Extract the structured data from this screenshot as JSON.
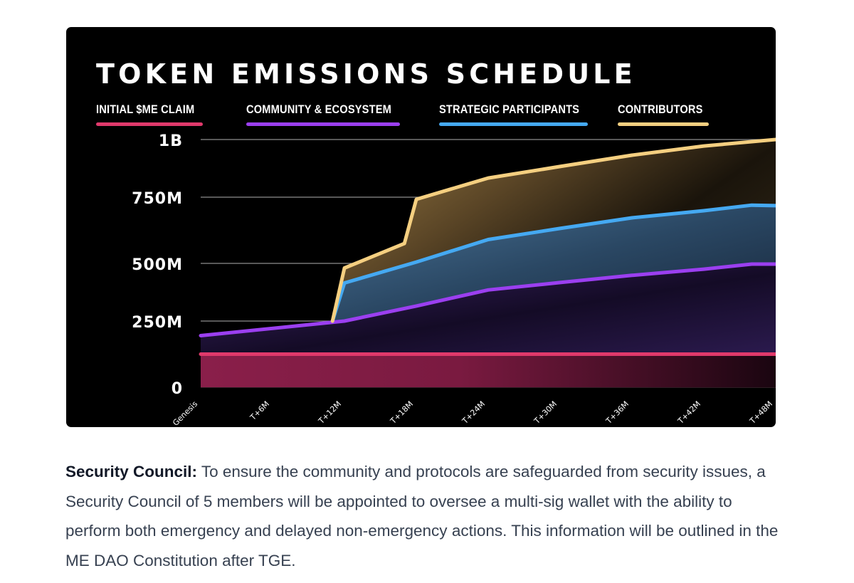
{
  "chart_data": {
    "type": "area",
    "title": "TOKEN EMISSIONS SCHEDULE",
    "xlabel": "",
    "ylabel": "",
    "x_unit": "months",
    "x_ticks": [
      {
        "month": 0,
        "label": "Genesis"
      },
      {
        "month": 6,
        "label": "T+6M"
      },
      {
        "month": 12,
        "label": "T+12M"
      },
      {
        "month": 18,
        "label": "T+18M"
      },
      {
        "month": 24,
        "label": "T+24M"
      },
      {
        "month": 30,
        "label": "T+30M"
      },
      {
        "month": 36,
        "label": "T+36M"
      },
      {
        "month": 42,
        "label": "T+42M"
      },
      {
        "month": 48,
        "label": "T+48M"
      }
    ],
    "y_ticks": [
      {
        "value": 0,
        "label": "0"
      },
      {
        "value": 250000000,
        "label": "250M"
      },
      {
        "value": 500000000,
        "label": "500M"
      },
      {
        "value": 750000000,
        "label": "750M"
      },
      {
        "value": 1000000000,
        "label": "1B"
      }
    ],
    "ylim": [
      0,
      1000000000
    ],
    "xlim": [
      0,
      48
    ],
    "grid": true,
    "legend_position": "top",
    "stacked_cumulative": true,
    "series": [
      {
        "name": "INITIAL $ME CLAIM",
        "color": "#e0396b",
        "fill": "#8a1f4a",
        "points": [
          [
            0,
            125000000
          ],
          [
            48,
            125000000
          ]
        ]
      },
      {
        "name": "COMMUNITY & ECOSYSTEM",
        "color": "#9b3ff0",
        "fill": "#3b2466",
        "points": [
          [
            0,
            195000000
          ],
          [
            12,
            250000000
          ],
          [
            18,
            315000000
          ],
          [
            24,
            385000000
          ],
          [
            30,
            417000000
          ],
          [
            36,
            448000000
          ],
          [
            42,
            475000000
          ],
          [
            46,
            497000000
          ],
          [
            48,
            497000000
          ]
        ]
      },
      {
        "name": "STRATEGIC PARTICIPANTS",
        "color": "#45a9f2",
        "fill": "#3f6585",
        "points": [
          [
            11,
            250000000
          ],
          [
            12,
            415000000
          ],
          [
            18,
            505000000
          ],
          [
            24,
            590000000
          ],
          [
            30,
            632000000
          ],
          [
            36,
            672000000
          ],
          [
            42,
            699000000
          ],
          [
            46,
            720000000
          ],
          [
            48,
            718000000
          ]
        ]
      },
      {
        "name": "CONTRIBUTORS",
        "color": "#f5cf80",
        "fill": "#9a7c45",
        "points": [
          [
            11,
            250000000
          ],
          [
            12,
            480000000
          ],
          [
            17,
            575000000
          ],
          [
            18,
            742000000
          ],
          [
            24,
            833000000
          ],
          [
            30,
            883000000
          ],
          [
            36,
            932000000
          ],
          [
            42,
            972000000
          ],
          [
            48,
            1000000000
          ]
        ]
      }
    ]
  },
  "description": {
    "heading": "Security Council:",
    "body": " To ensure the community and protocols are safeguarded from security issues, a Security Council of 5 members will be appointed to oversee a multi-sig wallet with the ability to perform both emergency and delayed non-emergency actions. This information will be outlined in the ME DAO Constitution after TGE."
  }
}
